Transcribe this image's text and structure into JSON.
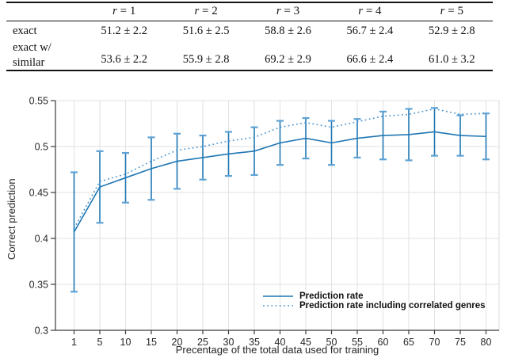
{
  "table": {
    "col_headers": [
      {
        "var": "r",
        "rest": "= 1"
      },
      {
        "var": "r",
        "rest": "= 2"
      },
      {
        "var": "r",
        "rest": "= 3"
      },
      {
        "var": "r",
        "rest": "= 4"
      },
      {
        "var": "r",
        "rest": "= 5"
      }
    ],
    "rows": [
      {
        "label_lines": [
          "exact"
        ],
        "values": [
          "51.2 ± 2.2",
          "51.6 ± 2.5",
          "58.8 ± 2.6",
          "56.7 ± 2.4",
          "52.9 ± 2.8"
        ]
      },
      {
        "label_lines": [
          "exact w/",
          "similar"
        ],
        "values": [
          "53.6 ± 2.2",
          "55.9 ± 2.8",
          "69.2 ± 2.9",
          "66.6 ± 2.4",
          "61.0 ± 3.2"
        ]
      }
    ]
  },
  "chart_data": {
    "type": "line",
    "xlabel": "Precentage of the total data used for training",
    "ylabel": "Correct prediction",
    "x": [
      1,
      5,
      10,
      15,
      20,
      25,
      30,
      35,
      40,
      45,
      50,
      55,
      60,
      65,
      70,
      75,
      80
    ],
    "ylim": [
      0.3,
      0.55
    ],
    "yticks": [
      0.3,
      0.35,
      0.4,
      0.45,
      0.5,
      0.55
    ],
    "grid": true,
    "legend_position": "lower right",
    "colors": {
      "solid_line": "#1f77b4",
      "dotted_line": "#4a94d0",
      "error_cap": "#5da2d5",
      "grid": "#e2e2e2",
      "spine": "#3a3a3a"
    },
    "series": [
      {
        "name": "Prediction rate",
        "style": "solid",
        "color": "#1f77b4",
        "values": [
          0.407,
          0.456,
          0.466,
          0.476,
          0.484,
          0.488,
          0.492,
          0.495,
          0.504,
          0.509,
          0.504,
          0.509,
          0.512,
          0.513,
          0.516,
          0.512,
          0.511
        ],
        "errors": [
          0.065,
          0.039,
          0.027,
          0.034,
          0.03,
          0.024,
          0.024,
          0.026,
          0.024,
          0.022,
          0.024,
          0.021,
          0.026,
          0.028,
          0.026,
          0.022,
          0.025
        ]
      },
      {
        "name": "Prediction rate including correlated genres",
        "style": "dotted",
        "color": "#4a94d0",
        "values": [
          0.411,
          0.462,
          0.47,
          0.484,
          0.496,
          0.5,
          0.506,
          0.51,
          0.521,
          0.526,
          0.521,
          0.527,
          0.533,
          0.535,
          0.541,
          0.535,
          0.536
        ]
      }
    ]
  }
}
